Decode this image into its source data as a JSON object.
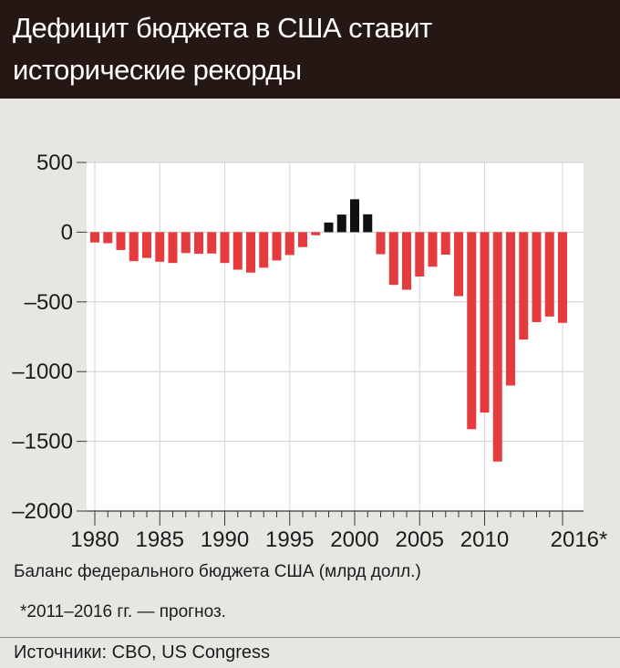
{
  "header": {
    "title": "Дефицит бюджета в США ставит исторические рекорды"
  },
  "chart_data": {
    "type": "bar",
    "title": "Дефицит бюджета в США ставит исторические рекорды",
    "xlabel": "",
    "ylabel": "Баланс федерального бюджета США (млрд долл.)",
    "ylim": [
      -2000,
      500
    ],
    "yticks": [
      500,
      0,
      -500,
      -1000,
      -1500,
      -2000
    ],
    "ytick_labels": [
      "500",
      "0",
      "–500",
      "–1000",
      "–1500",
      "–2000"
    ],
    "xticks": [
      "1980",
      "1985",
      "1990",
      "1995",
      "2000",
      "2005",
      "2010",
      "2016*"
    ],
    "grid": true,
    "categories": [
      "1980",
      "1981",
      "1982",
      "1983",
      "1984",
      "1985",
      "1986",
      "1987",
      "1988",
      "1989",
      "1990",
      "1991",
      "1992",
      "1993",
      "1994",
      "1995",
      "1996",
      "1997",
      "1998",
      "1999",
      "2000",
      "2001",
      "2002",
      "2003",
      "2004",
      "2005",
      "2006",
      "2007",
      "2008",
      "2009",
      "2010",
      "2011",
      "2012",
      "2013",
      "2014",
      "2015",
      "2016"
    ],
    "values": [
      -74,
      -79,
      -128,
      -208,
      -185,
      -212,
      -221,
      -150,
      -155,
      -153,
      -221,
      -269,
      -290,
      -255,
      -203,
      -164,
      -107,
      -22,
      69,
      126,
      236,
      128,
      -158,
      -378,
      -413,
      -318,
      -248,
      -161,
      -459,
      -1413,
      -1294,
      -1645,
      -1100,
      -770,
      -645,
      -605,
      -650
    ],
    "colors": {
      "deficit": "#e53a3e",
      "surplus": "#111111"
    }
  },
  "caption": "Баланс федерального бюджета США (млрд долл.)",
  "footnote": "*2011–2016 гг. — прогноз.",
  "sources": "Источники: CBO, US Congress"
}
